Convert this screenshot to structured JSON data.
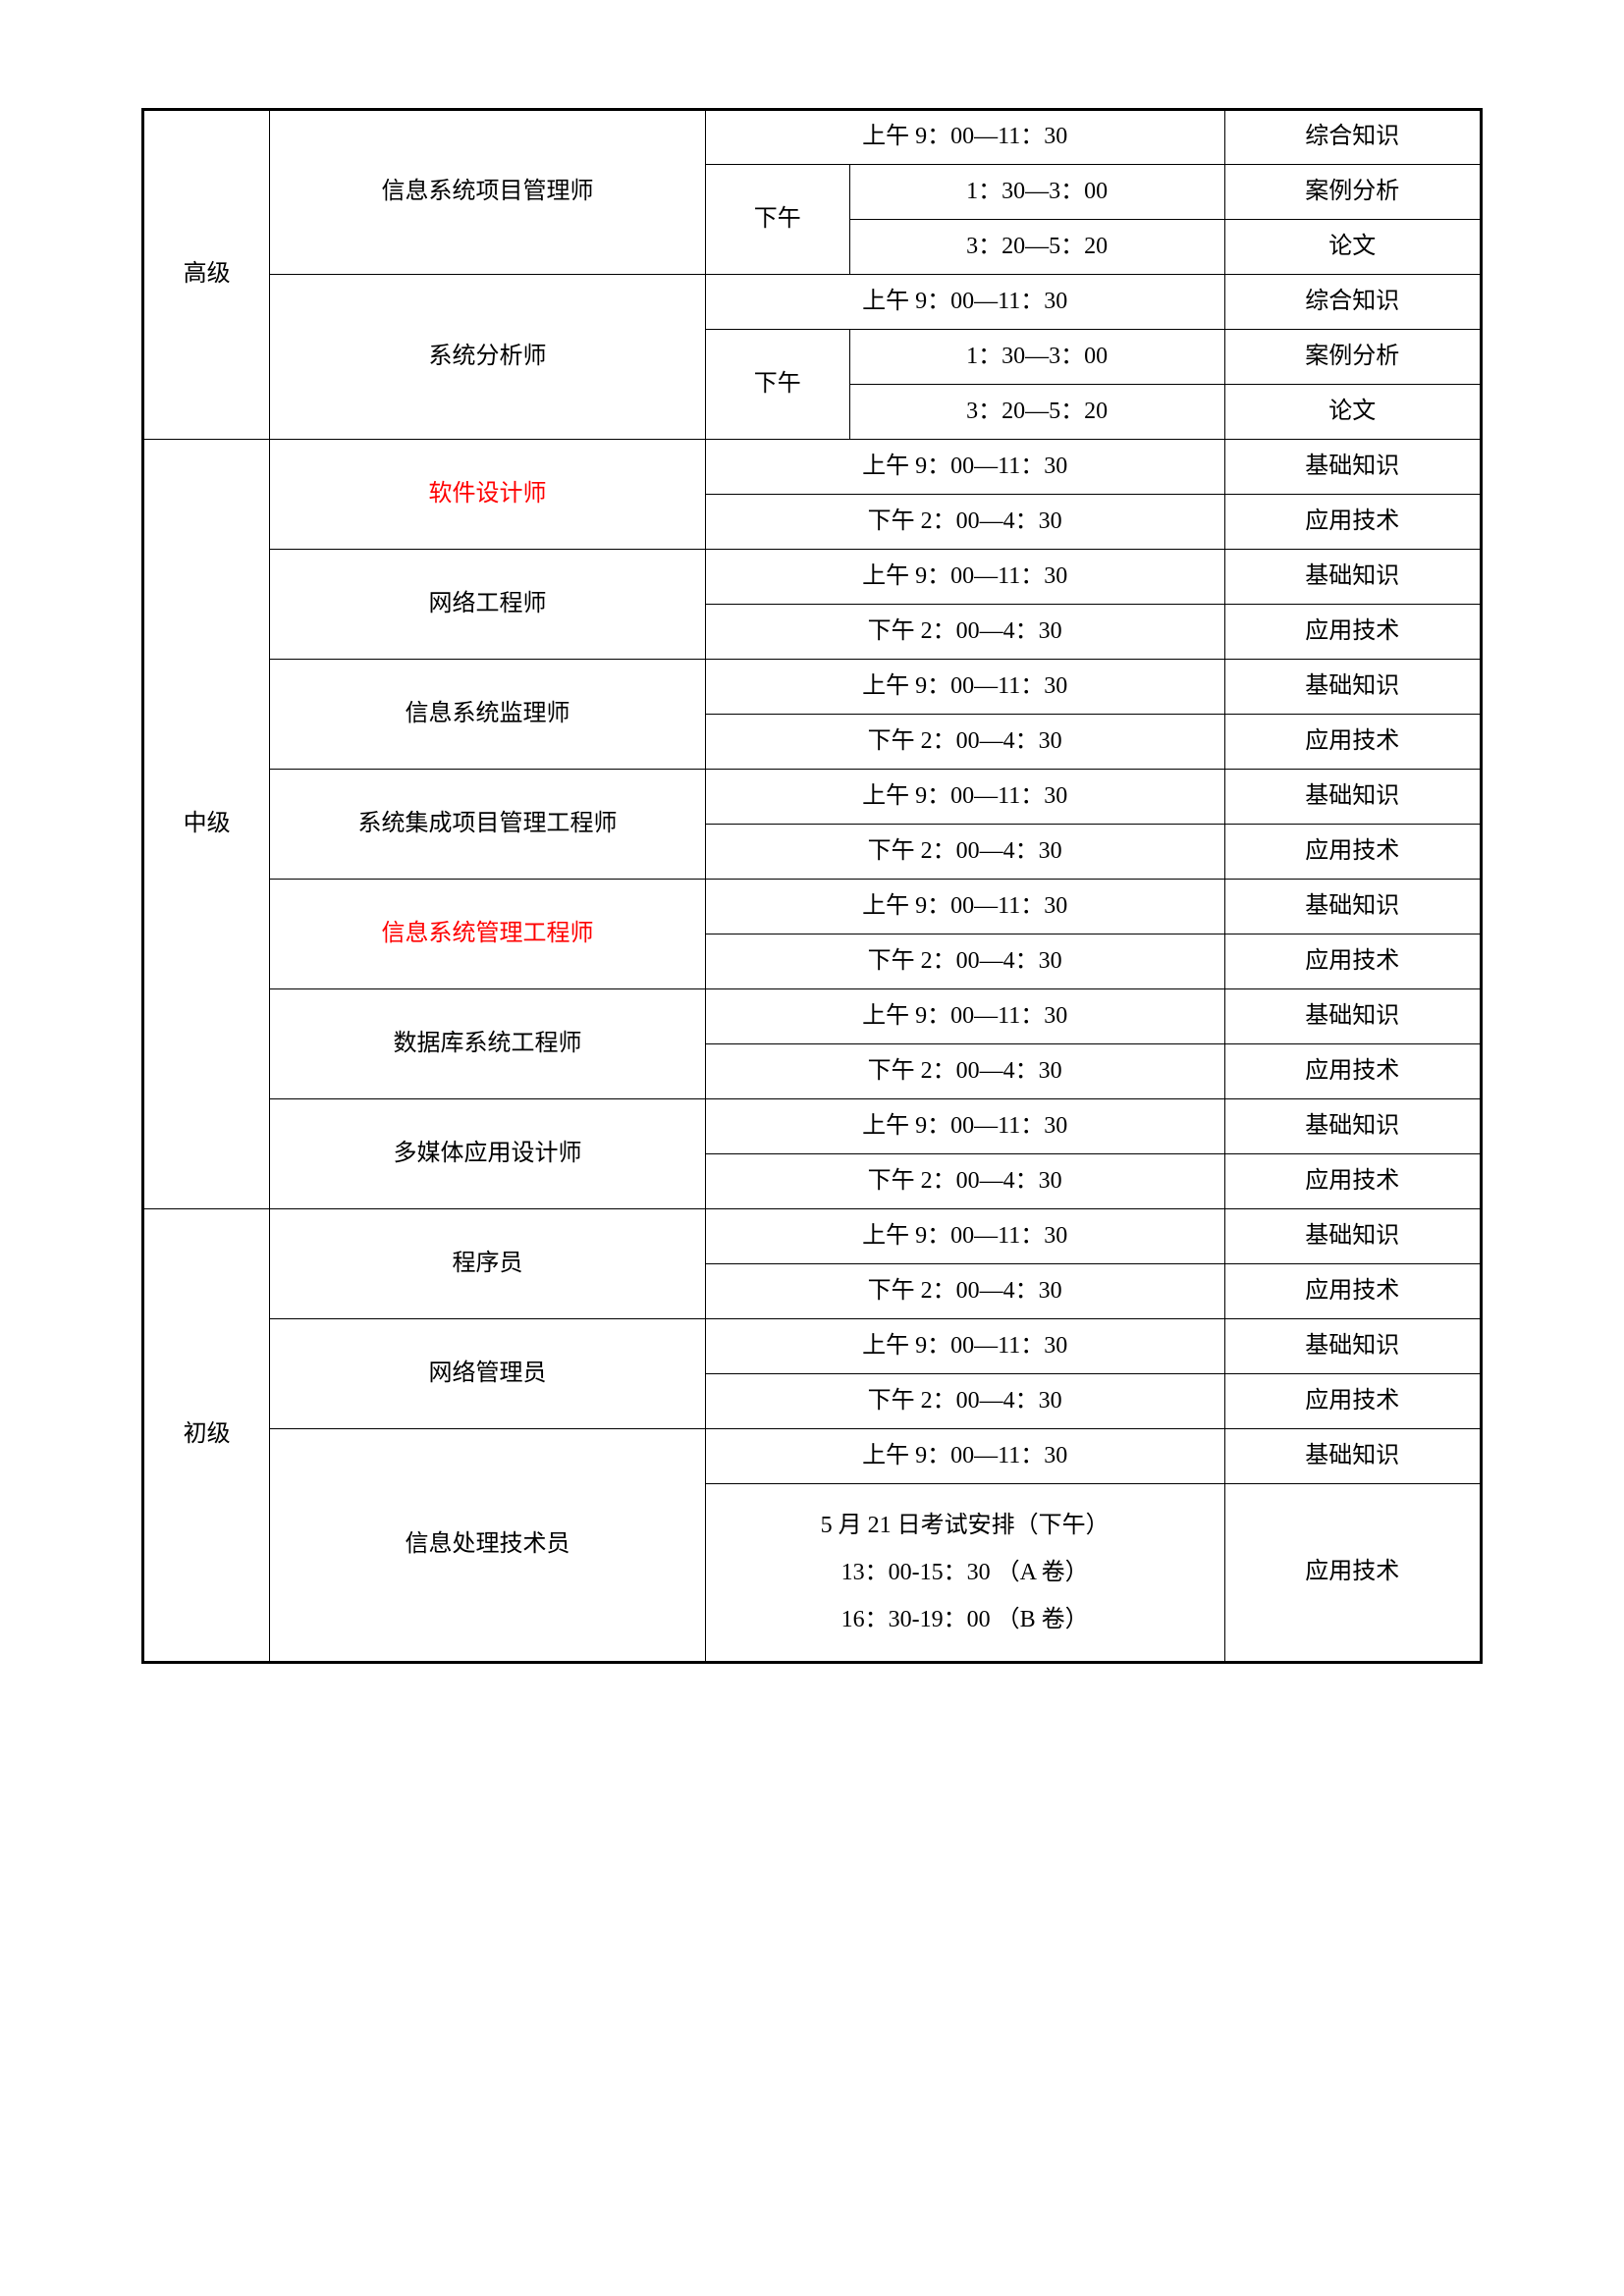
{
  "levels": {
    "high": "高级",
    "mid": "中级",
    "low": "初级"
  },
  "positions": {
    "high1": "信息系统项目管理师",
    "high2": "系统分析师",
    "mid1": "软件设计师",
    "mid2": "网络工程师",
    "mid3": "信息系统监理师",
    "mid4": "系统集成项目管理工程师",
    "mid5": "信息系统管理工程师",
    "mid6": "数据库系统工程师",
    "mid7": "多媒体应用设计师",
    "low1": "程序员",
    "low2": "网络管理员",
    "low3": "信息处理技术员"
  },
  "times": {
    "morning": "上午 9：00—11：30",
    "afternoon_label": "下午",
    "pm1": "1：30—3：00",
    "pm2": "3：20—5：20",
    "afternoon": "下午 2：00—4：30"
  },
  "subjects": {
    "comprehensive": "综合知识",
    "case": "案例分析",
    "thesis": "论文",
    "basic": "基础知识",
    "applied": "应用技术"
  },
  "special": {
    "line1": "5 月 21 日考试安排（下午）",
    "line2": "13：00-15：30 （A 卷）",
    "line3": "16：30-19：00 （B 卷）"
  },
  "style": {
    "font_size": 24,
    "border_color": "#000000",
    "highlight_color": "#ff0000",
    "background": "#ffffff"
  }
}
